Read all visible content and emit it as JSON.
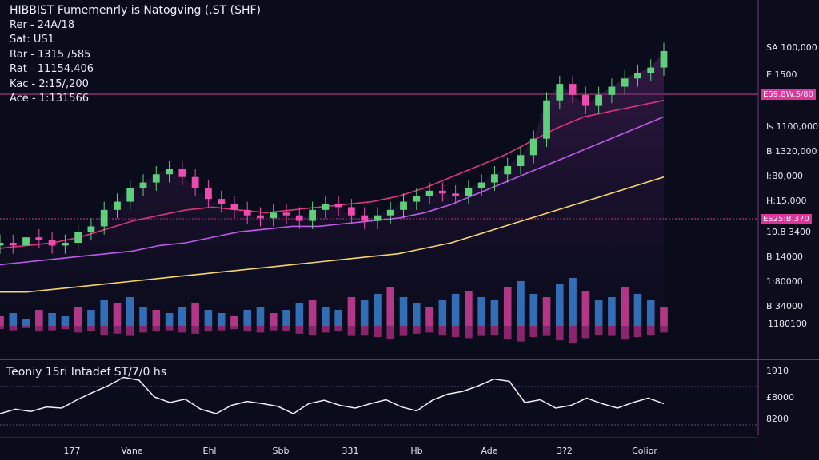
{
  "header": {
    "title": "HIBBIST Fumemenrly is Natogving (.ST (SHF)",
    "lines": [
      "Rer - 24A/18",
      "Sat: US1",
      "Rar - 1315 /585",
      "Rat - 11154.406",
      "Kac - 2:15/,200",
      "Ace - 1:131566"
    ]
  },
  "right_axis": {
    "labels": [
      "SA 100,000",
      "E 1500",
      "Is 1100,000",
      "B 1320,000",
      "I:B0,000",
      "H:15,000",
      "10.8 3400",
      "B 14000",
      "1:80000",
      "B 34000",
      "1180100"
    ],
    "price_tags": [
      "E59.8W.S/80",
      "ES25:B.370"
    ]
  },
  "sub_chart": {
    "title": "Teoniy 15ri Intadef ST/7/0 hs",
    "axis_labels": [
      "1910",
      "£8000",
      "8200"
    ]
  },
  "x_axis": {
    "labels": [
      "177",
      "Vane",
      "Ehl",
      "Sbb",
      "331",
      "Hb",
      "Ade",
      "3?2",
      "Colior"
    ]
  },
  "chart_data": {
    "type": "candlestick",
    "title": "HIBBIST Fumemenrly is Natogving (.ST (SHF)",
    "series": [
      {
        "name": "",
        "type": "candlestick",
        "values": [
          58,
          57,
          60,
          59,
          57,
          58,
          62,
          64,
          70,
          73,
          78,
          80,
          83,
          85,
          82,
          78,
          74,
          72,
          70,
          68,
          67,
          69,
          68,
          66,
          70,
          72,
          71,
          68,
          66,
          68,
          70,
          73,
          75,
          77,
          76,
          75,
          78,
          80,
          83,
          86,
          90,
          96,
          110,
          116,
          112,
          108,
          112,
          115,
          118,
          120,
          122,
          128
        ]
      },
      {
        "name": "",
        "type": "line",
        "values": [
          56,
          57,
          58,
          60,
          63,
          66,
          68,
          70,
          71,
          70,
          69,
          70,
          71,
          72,
          73,
          75,
          78,
          82,
          86,
          90,
          95,
          100,
          104,
          106,
          108,
          110
        ]
      },
      {
        "name": "",
        "type": "line",
        "values": [
          50,
          51,
          52,
          53,
          54,
          55,
          57,
          58,
          60,
          62,
          63,
          64,
          64,
          65,
          66,
          67,
          69,
          72,
          76,
          80,
          84,
          88,
          92,
          96,
          100,
          104
        ]
      },
      {
        "name": "",
        "type": "line",
        "values": [
          40,
          40,
          41,
          42,
          43,
          44,
          45,
          46,
          47,
          48,
          49,
          50,
          51,
          52,
          53,
          54,
          56,
          58,
          61,
          64,
          67,
          70,
          73,
          76,
          79,
          82
        ]
      }
    ],
    "volume": [
      3,
      4,
      2,
      5,
      4,
      3,
      6,
      5,
      8,
      7,
      9,
      6,
      5,
      4,
      6,
      7,
      5,
      4,
      3,
      5,
      6,
      4,
      5,
      7,
      8,
      6,
      5,
      9,
      8,
      10,
      12,
      9,
      7,
      6,
      8,
      10,
      11,
      9,
      8,
      12,
      14,
      10,
      9,
      13,
      15,
      11,
      8,
      9,
      12,
      10,
      8,
      6
    ],
    "oscillator": [
      20,
      28,
      24,
      32,
      30,
      45,
      58,
      70,
      85,
      80,
      50,
      40,
      46,
      28,
      20,
      35,
      42,
      38,
      33,
      20,
      38,
      44,
      35,
      30,
      38,
      45,
      32,
      25,
      44,
      55,
      60,
      70,
      82,
      78,
      40,
      45,
      30,
      35,
      48,
      38,
      30,
      40,
      48,
      38
    ],
    "grid": false
  }
}
